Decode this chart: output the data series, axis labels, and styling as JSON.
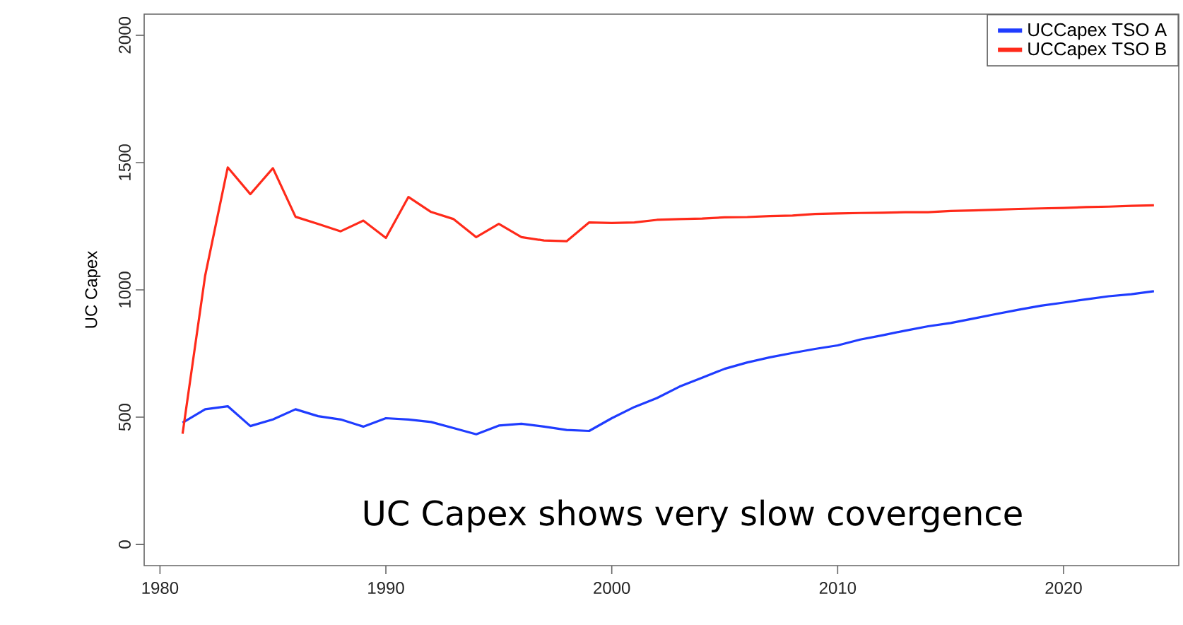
{
  "chart_data": {
    "type": "line",
    "ylabel": "UC Capex",
    "annotations": [
      "UC Capex shows very slow covergence"
    ],
    "x": [
      1981,
      1982,
      1983,
      1984,
      1985,
      1986,
      1987,
      1988,
      1989,
      1990,
      1991,
      1992,
      1993,
      1994,
      1995,
      1996,
      1997,
      1998,
      1999,
      2000,
      2001,
      2002,
      2003,
      2004,
      2005,
      2006,
      2007,
      2008,
      2009,
      2010,
      2011,
      2012,
      2013,
      2014,
      2015,
      2016,
      2017,
      2018,
      2019,
      2020,
      2021,
      2022,
      2023,
      2024
    ],
    "series": [
      {
        "name": "UCCapex TSO A",
        "color": "#1f3cff",
        "values": [
          478,
          531,
          543,
          465,
          491,
          531,
          504,
          491,
          463,
          496,
          491,
          481,
          457,
          433,
          467,
          474,
          463,
          450,
          446,
          496,
          540,
          575,
          620,
          655,
          690,
          715,
          735,
          752,
          768,
          782,
          805,
          822,
          840,
          857,
          870,
          887,
          905,
          922,
          938,
          950,
          963,
          975,
          983,
          995
        ]
      },
      {
        "name": "UCCapex TSO B",
        "color": "#ff2a1a",
        "values": [
          435,
          1056,
          1481,
          1376,
          1478,
          1287,
          1259,
          1230,
          1272,
          1204,
          1365,
          1306,
          1278,
          1207,
          1259,
          1207,
          1194,
          1191,
          1265,
          1263,
          1265,
          1275,
          1278,
          1280,
          1285,
          1286,
          1290,
          1292,
          1298,
          1300,
          1302,
          1303,
          1305,
          1305,
          1310,
          1312,
          1315,
          1318,
          1320,
          1322,
          1325,
          1327,
          1330,
          1332
        ]
      }
    ],
    "xlim": [
      1979.3,
      2025.1
    ],
    "ylim": [
      -83,
      2083
    ],
    "xticks": [
      1980,
      1990,
      2000,
      2010,
      2020
    ],
    "yticks": [
      0,
      500,
      1000,
      1500,
      2000
    ],
    "legend": "top right",
    "grid": false,
    "line_style": "solid",
    "marker": "none"
  }
}
